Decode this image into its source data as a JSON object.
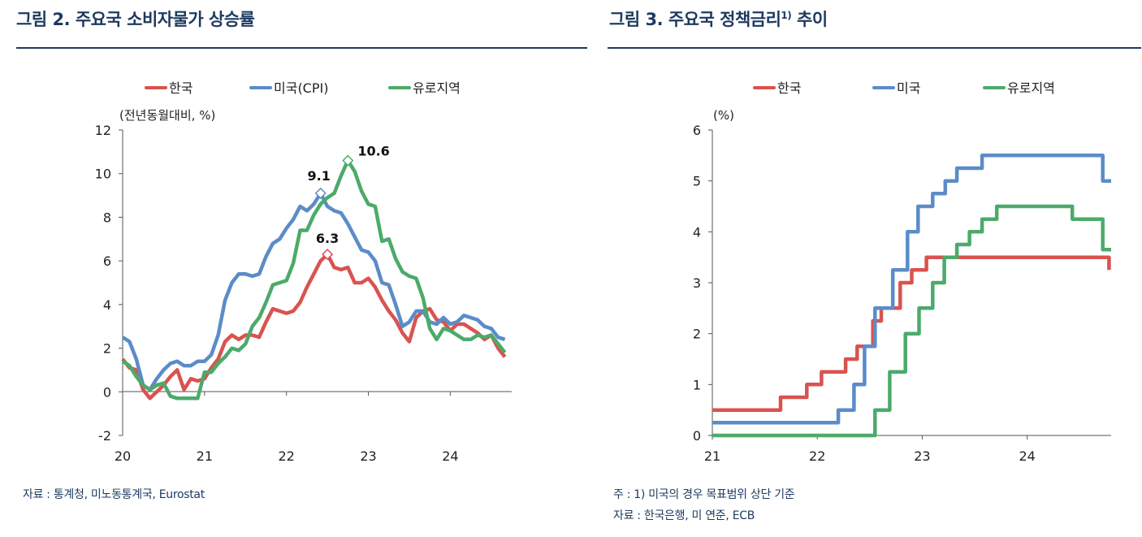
{
  "charts": [
    {
      "title": "그림 2. 주요국 소비자물가 상승률",
      "source": "자료 : 통계청, 미노동통계국, Eurostat",
      "notes": []
    },
    {
      "title_main": "그림 3. 주요국 정책금리",
      "title_sup": "1)",
      "title_tail": " 추이",
      "notes": [
        "주 : 1) 미국의 경우 목표범위 상단 기준",
        "자료 : 한국은행, 미 연준, ECB"
      ]
    }
  ],
  "colors": {
    "korea": "#d9534f",
    "us": "#5b8cc8",
    "euro": "#4caa6a",
    "title": "#1d3a5f"
  },
  "chart_data": [
    {
      "type": "line",
      "title": "그림 2. 주요국 소비자물가 상승률",
      "ylabel": "(전년동월대비, %)",
      "xlabel": "",
      "xlim": [
        2020,
        2024.75
      ],
      "ylim": [
        -2,
        12
      ],
      "yticks": [
        -2,
        0,
        2,
        4,
        6,
        8,
        10,
        12
      ],
      "xticks": [
        {
          "v": 2020,
          "label": "20"
        },
        {
          "v": 2021,
          "label": "21"
        },
        {
          "v": 2022,
          "label": "22"
        },
        {
          "v": 2023,
          "label": "23"
        },
        {
          "v": 2024,
          "label": "24"
        }
      ],
      "legend": "top",
      "series": [
        {
          "name": "한국",
          "color": "#d9534f",
          "values": [
            1.5,
            1.1,
            1.0,
            0.1,
            -0.3,
            0.0,
            0.3,
            0.7,
            1.0,
            0.1,
            0.6,
            0.5,
            0.6,
            1.1,
            1.5,
            2.3,
            2.6,
            2.4,
            2.6,
            2.6,
            2.5,
            3.2,
            3.8,
            3.7,
            3.6,
            3.7,
            4.1,
            4.8,
            5.4,
            6.0,
            6.3,
            5.7,
            5.6,
            5.7,
            5.0,
            5.0,
            5.2,
            4.8,
            4.2,
            3.7,
            3.3,
            2.7,
            2.3,
            3.4,
            3.7,
            3.8,
            3.3,
            3.2,
            2.8,
            3.1,
            3.1,
            2.9,
            2.7,
            2.4,
            2.6,
            2.0,
            1.6
          ]
        },
        {
          "name": "미국(CPI)",
          "color": "#5b8cc8",
          "values": [
            2.5,
            2.3,
            1.5,
            0.3,
            0.1,
            0.6,
            1.0,
            1.3,
            1.4,
            1.2,
            1.2,
            1.4,
            1.4,
            1.7,
            2.6,
            4.2,
            5.0,
            5.4,
            5.4,
            5.3,
            5.4,
            6.2,
            6.8,
            7.0,
            7.5,
            7.9,
            8.5,
            8.3,
            8.6,
            9.1,
            8.5,
            8.3,
            8.2,
            7.7,
            7.1,
            6.5,
            6.4,
            6.0,
            5.0,
            4.9,
            4.0,
            3.0,
            3.2,
            3.7,
            3.7,
            3.2,
            3.1,
            3.4,
            3.1,
            3.2,
            3.5,
            3.4,
            3.3,
            3.0,
            2.9,
            2.5,
            2.4
          ]
        },
        {
          "name": "유로지역",
          "color": "#4caa6a",
          "values": [
            1.4,
            1.2,
            0.7,
            0.3,
            0.1,
            0.3,
            0.4,
            -0.2,
            -0.3,
            -0.3,
            -0.3,
            -0.3,
            0.9,
            0.9,
            1.3,
            1.6,
            2.0,
            1.9,
            2.2,
            3.0,
            3.4,
            4.1,
            4.9,
            5.0,
            5.1,
            5.9,
            7.4,
            7.4,
            8.1,
            8.6,
            8.9,
            9.1,
            9.9,
            10.6,
            10.1,
            9.2,
            8.6,
            8.5,
            6.9,
            7.0,
            6.1,
            5.5,
            5.3,
            5.2,
            4.3,
            2.9,
            2.4,
            2.9,
            2.8,
            2.6,
            2.4,
            2.4,
            2.6,
            2.5,
            2.6,
            2.2,
            1.8
          ]
        }
      ],
      "annotations": [
        {
          "series": "미국(CPI)",
          "x": 2022.4167,
          "y": 9.1,
          "label": "9.1"
        },
        {
          "series": "유로지역",
          "x": 2022.75,
          "y": 10.6,
          "label": "10.6"
        },
        {
          "series": "한국",
          "x": 2022.5,
          "y": 6.3,
          "label": "6.3"
        }
      ]
    },
    {
      "type": "line",
      "step": true,
      "title": "그림 3. 주요국 정책금리 추이",
      "ylabel": "(%)",
      "xlabel": "",
      "xlim": [
        2021,
        2024.8
      ],
      "ylim": [
        0,
        6
      ],
      "yticks": [
        0,
        1,
        2,
        3,
        4,
        5,
        6
      ],
      "xticks": [
        {
          "v": 2021,
          "label": "21"
        },
        {
          "v": 2022,
          "label": "22"
        },
        {
          "v": 2023,
          "label": "23"
        },
        {
          "v": 2024,
          "label": "24"
        }
      ],
      "legend": "top",
      "series": [
        {
          "name": "한국",
          "color": "#d9534f",
          "points": [
            [
              2021.0,
              0.5
            ],
            [
              2021.65,
              0.75
            ],
            [
              2021.9,
              1.0
            ],
            [
              2022.04,
              1.25
            ],
            [
              2022.27,
              1.5
            ],
            [
              2022.38,
              1.75
            ],
            [
              2022.53,
              2.25
            ],
            [
              2022.61,
              2.5
            ],
            [
              2022.79,
              3.0
            ],
            [
              2022.9,
              3.25
            ],
            [
              2023.04,
              3.5
            ],
            [
              2024.78,
              3.5
            ],
            [
              2024.78,
              3.25
            ]
          ]
        },
        {
          "name": "미국",
          "color": "#5b8cc8",
          "points": [
            [
              2021.0,
              0.25
            ],
            [
              2022.2,
              0.5
            ],
            [
              2022.35,
              1.0
            ],
            [
              2022.45,
              1.75
            ],
            [
              2022.55,
              2.5
            ],
            [
              2022.72,
              3.25
            ],
            [
              2022.86,
              4.0
            ],
            [
              2022.96,
              4.5
            ],
            [
              2023.1,
              4.75
            ],
            [
              2023.22,
              5.0
            ],
            [
              2023.33,
              5.25
            ],
            [
              2023.57,
              5.5
            ],
            [
              2024.72,
              5.5
            ],
            [
              2024.72,
              5.0
            ],
            [
              2024.8,
              5.0
            ]
          ]
        },
        {
          "name": "유로지역",
          "color": "#4caa6a",
          "points": [
            [
              2021.0,
              0.0
            ],
            [
              2022.55,
              0.5
            ],
            [
              2022.69,
              1.25
            ],
            [
              2022.84,
              2.0
            ],
            [
              2022.97,
              2.5
            ],
            [
              2023.1,
              3.0
            ],
            [
              2023.21,
              3.5
            ],
            [
              2023.33,
              3.75
            ],
            [
              2023.45,
              4.0
            ],
            [
              2023.57,
              4.25
            ],
            [
              2023.71,
              4.5
            ],
            [
              2024.43,
              4.5
            ],
            [
              2024.43,
              4.25
            ],
            [
              2024.72,
              4.25
            ],
            [
              2024.72,
              3.65
            ],
            [
              2024.8,
              3.65
            ]
          ]
        }
      ]
    }
  ]
}
